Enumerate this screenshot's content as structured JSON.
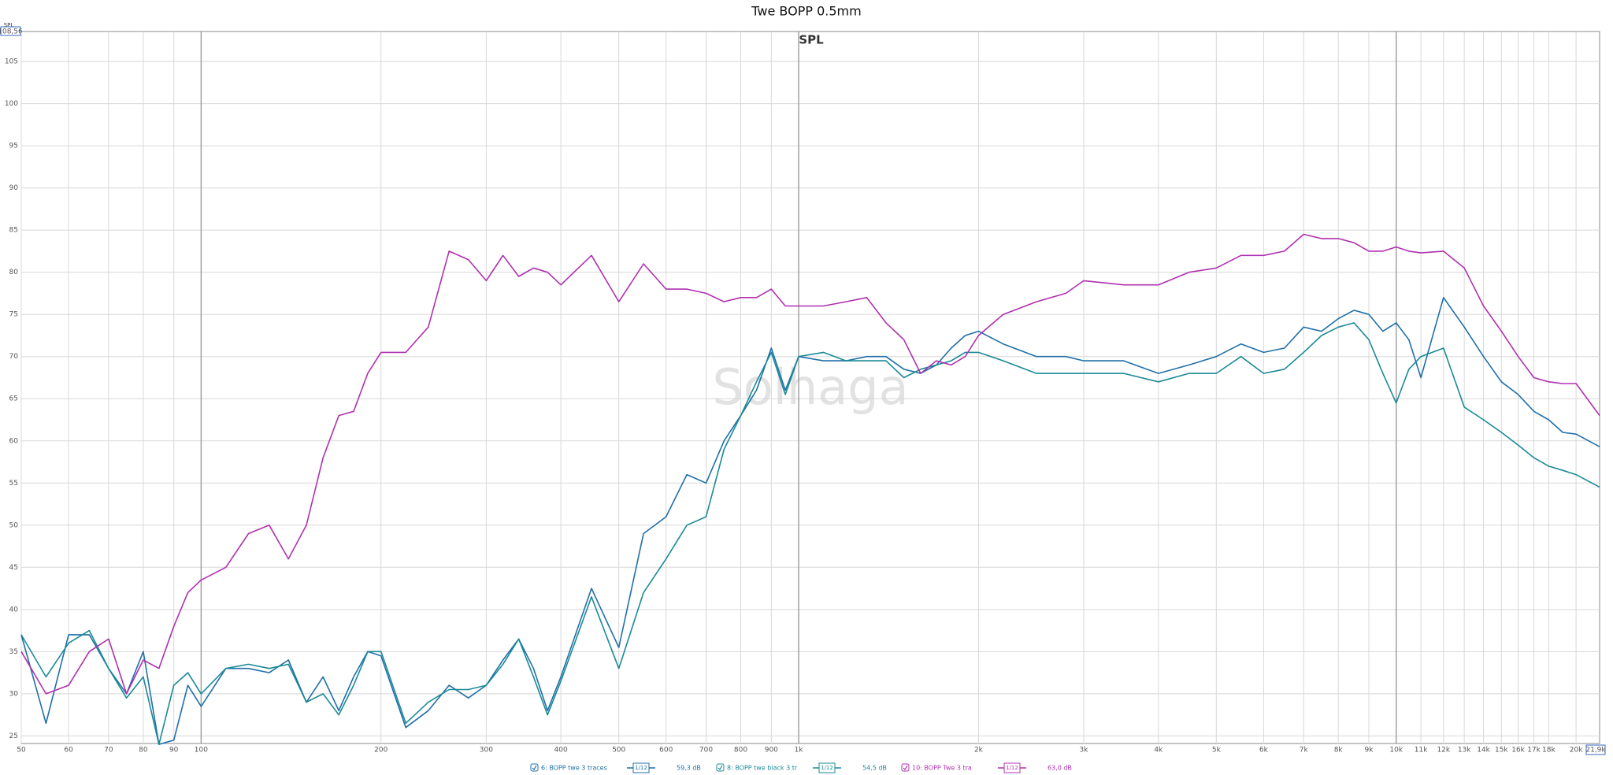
{
  "chart_data": {
    "type": "line",
    "title": "Twe BOPP 0.5mm",
    "subtitle": "SPL",
    "y_axis_label": "SPL",
    "watermark": "Solhaga",
    "log_x": true,
    "grid": true,
    "xlim": [
      50,
      21900
    ],
    "ylim": [
      24.1,
      108.56
    ],
    "yticks": [
      25,
      30,
      35,
      40,
      45,
      50,
      55,
      60,
      65,
      70,
      75,
      80,
      85,
      90,
      95,
      100,
      105,
      {
        "value": 108.56,
        "label": "108,56"
      }
    ],
    "xticks": [
      50,
      60,
      70,
      80,
      90,
      100,
      200,
      300,
      400,
      500,
      600,
      700,
      800,
      900,
      {
        "value": 1000,
        "label": "1k"
      },
      {
        "value": 2000,
        "label": "2k"
      },
      {
        "value": 3000,
        "label": "3k"
      },
      {
        "value": 4000,
        "label": "4k"
      },
      {
        "value": 5000,
        "label": "5k"
      },
      {
        "value": 6000,
        "label": "6k"
      },
      {
        "value": 7000,
        "label": "7k"
      },
      {
        "value": 8000,
        "label": "8k"
      },
      {
        "value": 9000,
        "label": "9k"
      },
      {
        "value": 10000,
        "label": "10k"
      },
      {
        "value": 11000,
        "label": "11k"
      },
      {
        "value": 12000,
        "label": "12k"
      },
      {
        "value": 13000,
        "label": "13k"
      },
      {
        "value": 14000,
        "label": "14k"
      },
      {
        "value": 15000,
        "label": "15k"
      },
      {
        "value": 16000,
        "label": "16k"
      },
      {
        "value": 17000,
        "label": "17k"
      },
      {
        "value": 18000,
        "label": "18k"
      },
      {
        "value": 20000,
        "label": "20k"
      },
      {
        "value": 21900,
        "label": "21,9k"
      }
    ],
    "x": [
      50,
      55,
      60,
      65,
      70,
      75,
      80,
      85,
      90,
      95,
      100,
      110,
      120,
      130,
      140,
      150,
      160,
      170,
      180,
      190,
      200,
      220,
      240,
      260,
      280,
      300,
      320,
      340,
      360,
      380,
      400,
      450,
      500,
      550,
      600,
      650,
      700,
      750,
      800,
      850,
      900,
      950,
      1000,
      1100,
      1200,
      1300,
      1400,
      1500,
      1600,
      1700,
      1800,
      1900,
      2000,
      2200,
      2500,
      2800,
      3000,
      3500,
      4000,
      4500,
      5000,
      5500,
      6000,
      6500,
      7000,
      7500,
      8000,
      8500,
      9000,
      9500,
      10000,
      10500,
      11000,
      12000,
      13000,
      14000,
      15000,
      16000,
      17000,
      18000,
      19000,
      20000,
      21900
    ],
    "series": [
      {
        "name": "6: BOPP twe 3 traces",
        "color": "#1f6fa8",
        "smoothing": "1/12",
        "legend_value": "59,3 dB",
        "values": [
          37,
          26.5,
          37,
          37,
          33,
          30,
          35,
          24,
          24.5,
          31,
          28.5,
          33,
          33,
          32.5,
          34,
          29,
          32,
          28,
          32,
          35,
          34.5,
          26,
          28,
          31,
          29.5,
          31,
          34,
          36.5,
          33,
          28,
          32,
          42.5,
          35.5,
          49,
          51,
          56,
          55,
          60,
          63,
          66,
          71,
          66,
          70,
          69.5,
          69.5,
          70,
          70,
          68.5,
          68,
          69,
          71,
          72.5,
          73,
          71.5,
          70,
          70,
          69.5,
          69.5,
          68,
          69,
          70,
          71.5,
          70.5,
          71,
          73.5,
          73,
          74.5,
          75.5,
          75,
          73,
          74,
          72,
          67.5,
          77,
          73.5,
          70,
          67,
          65.5,
          63.5,
          62.5,
          61,
          60.8,
          59.3
        ]
      },
      {
        "name": "8: BOPP twe black 3 tr",
        "color": "#1a8a96",
        "smoothing": "1/12",
        "legend_value": "54,5 dB",
        "values": [
          37,
          32,
          36,
          37.5,
          33,
          29.5,
          32,
          24,
          31,
          32.5,
          30,
          33,
          33.5,
          33,
          33.5,
          29,
          30,
          27.5,
          31,
          35,
          35,
          26.5,
          29,
          30.5,
          30.5,
          31,
          33.5,
          36.5,
          32,
          27.5,
          31.5,
          41.5,
          33,
          42,
          46,
          50,
          51,
          59,
          63,
          67,
          70.5,
          65.5,
          70,
          70.5,
          69.5,
          69.5,
          69.5,
          67.5,
          68.5,
          69,
          69.5,
          70.5,
          70.5,
          69.5,
          68,
          68,
          68,
          68,
          67,
          68,
          68,
          70,
          68,
          68.5,
          70.5,
          72.5,
          73.5,
          74,
          72,
          68,
          64.5,
          68.5,
          70,
          71,
          64,
          62.5,
          61,
          59.5,
          58,
          57,
          56.5,
          56,
          54.5
        ]
      },
      {
        "name": "10: BOPP Twe 3 tra",
        "color": "#b030b0",
        "smoothing": "1/12",
        "legend_value": "63,0 dB",
        "values": [
          35,
          30,
          31,
          35,
          36.5,
          30,
          34,
          33,
          38,
          42,
          43.5,
          45,
          49,
          50,
          46,
          50,
          58,
          63,
          63.5,
          68,
          70.5,
          70.5,
          73.5,
          82.5,
          81.5,
          79,
          82,
          79.5,
          80.5,
          80,
          78.5,
          82,
          76.5,
          81,
          78,
          78,
          77.5,
          76.5,
          77,
          77,
          78,
          76,
          76,
          76,
          76.5,
          77,
          74,
          72,
          68,
          69.5,
          69,
          70,
          72.5,
          75,
          76.5,
          77.5,
          79,
          78.5,
          78.5,
          80,
          80.5,
          82,
          82,
          82.5,
          84.5,
          84,
          84,
          83.5,
          82.5,
          82.5,
          83,
          82.5,
          82.3,
          82.5,
          80.5,
          76,
          73,
          70,
          67.5,
          67,
          66.8,
          66.8,
          63
        ]
      }
    ]
  }
}
